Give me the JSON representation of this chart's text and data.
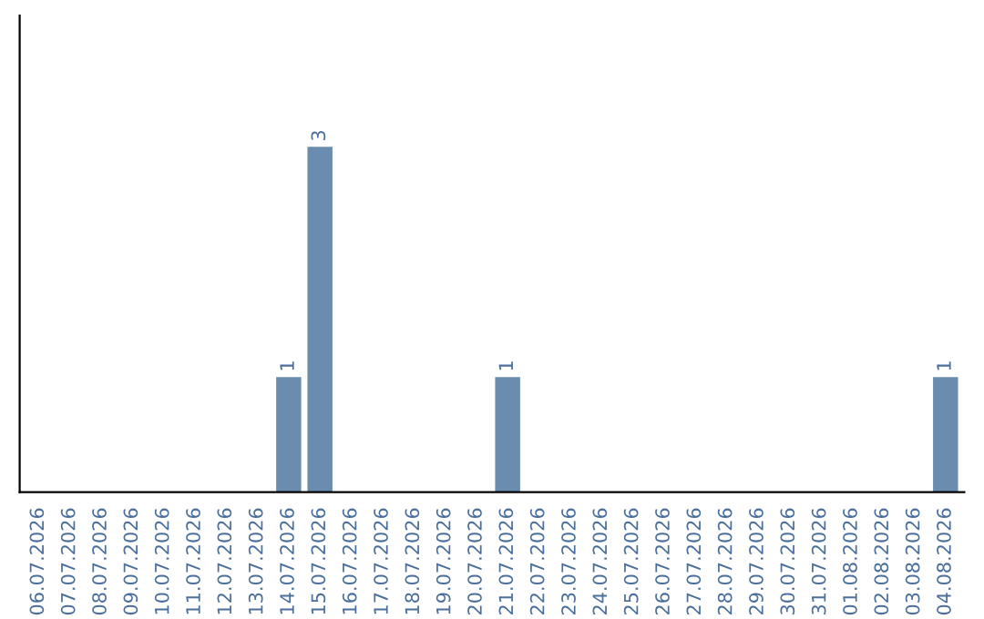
{
  "chart_data": {
    "type": "bar",
    "categories": [
      "06.07.2026",
      "07.07.2026",
      "08.07.2026",
      "09.07.2026",
      "10.07.2026",
      "11.07.2026",
      "12.07.2026",
      "13.07.2026",
      "14.07.2026",
      "15.07.2026",
      "16.07.2026",
      "17.07.2026",
      "18.07.2026",
      "19.07.2026",
      "20.07.2026",
      "21.07.2026",
      "22.07.2026",
      "23.07.2026",
      "24.07.2026",
      "25.07.2026",
      "26.07.2026",
      "27.07.2026",
      "28.07.2026",
      "29.07.2026",
      "30.07.2026",
      "31.07.2026",
      "01.08.2026",
      "02.08.2026",
      "03.08.2026",
      "04.08.2026"
    ],
    "values": [
      0,
      0,
      0,
      0,
      0,
      0,
      0,
      0,
      1,
      3,
      0,
      0,
      0,
      0,
      0,
      1,
      0,
      0,
      0,
      0,
      0,
      0,
      0,
      0,
      0,
      0,
      0,
      0,
      0,
      1
    ],
    "value_labels": [
      null,
      null,
      null,
      null,
      null,
      null,
      null,
      null,
      "1",
      "3",
      null,
      null,
      null,
      null,
      null,
      "1",
      null,
      null,
      null,
      null,
      null,
      null,
      null,
      null,
      null,
      null,
      null,
      null,
      null,
      "1"
    ],
    "color": "#6a8caf",
    "tick_labels": "x",
    "grid": false,
    "legend": false
  }
}
